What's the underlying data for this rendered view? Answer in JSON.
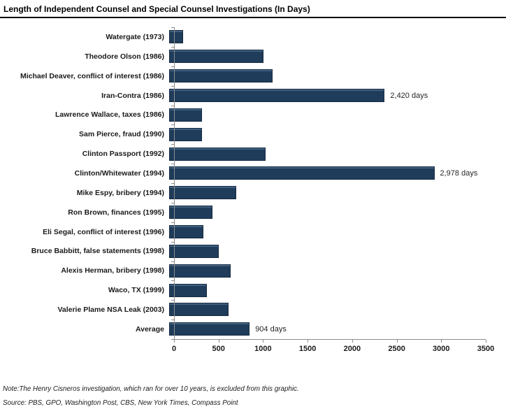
{
  "header": {
    "title": "Length of Independent Counsel and Special Counsel Investigations (In Days)"
  },
  "chart_data": {
    "type": "bar",
    "orientation": "horizontal",
    "title": "Length of Independent Counsel and Special Counsel Investigations (In Days)",
    "categories": [
      "Watergate (1973)",
      "Theodore Olson (1986)",
      "Michael Deaver, conflict of interest (1986)",
      "Iran-Contra (1986)",
      "Lawrence Wallace, taxes (1986)",
      "Sam Pierce, fraud (1990)",
      "Clinton Passport (1992)",
      "Clinton/Whitewater (1994)",
      "Mike Espy, bribery (1994)",
      "Ron Brown, finances (1995)",
      "Eli Segal, conflict of interest (1996)",
      "Bruce Babbitt, false statements (1998)",
      "Alexis Herman, bribery (1998)",
      "Waco, TX (1999)",
      "Valerie Plame NSA Leak (2003)",
      "Average"
    ],
    "values": [
      160,
      1060,
      1160,
      2420,
      365,
      370,
      1080,
      2978,
      750,
      490,
      385,
      560,
      690,
      420,
      665,
      904
    ],
    "bar_labels": [
      "",
      "",
      "",
      "2,420 days",
      "",
      "",
      "",
      "2,978 days",
      "",
      "",
      "",
      "",
      "",
      "",
      "",
      "904 days"
    ],
    "xlabel": "",
    "ylabel": "",
    "xlim": [
      0,
      3500
    ],
    "x_ticks": [
      "0",
      "500",
      "1000",
      "1500",
      "2000",
      "2500",
      "3000",
      "3500"
    ],
    "grid": false,
    "legend": false,
    "bar_color": "#1F3C5A",
    "bar_border_color": "#152A40",
    "axis_color": "#8C8C8C"
  },
  "footer": {
    "note": "Note:The Henry Cisneros investigation, which ran for over 10 years, is excluded from this graphic.",
    "source": "Source: PBS, GPO, Washington Post, CBS, New York Times, Compass Point"
  }
}
